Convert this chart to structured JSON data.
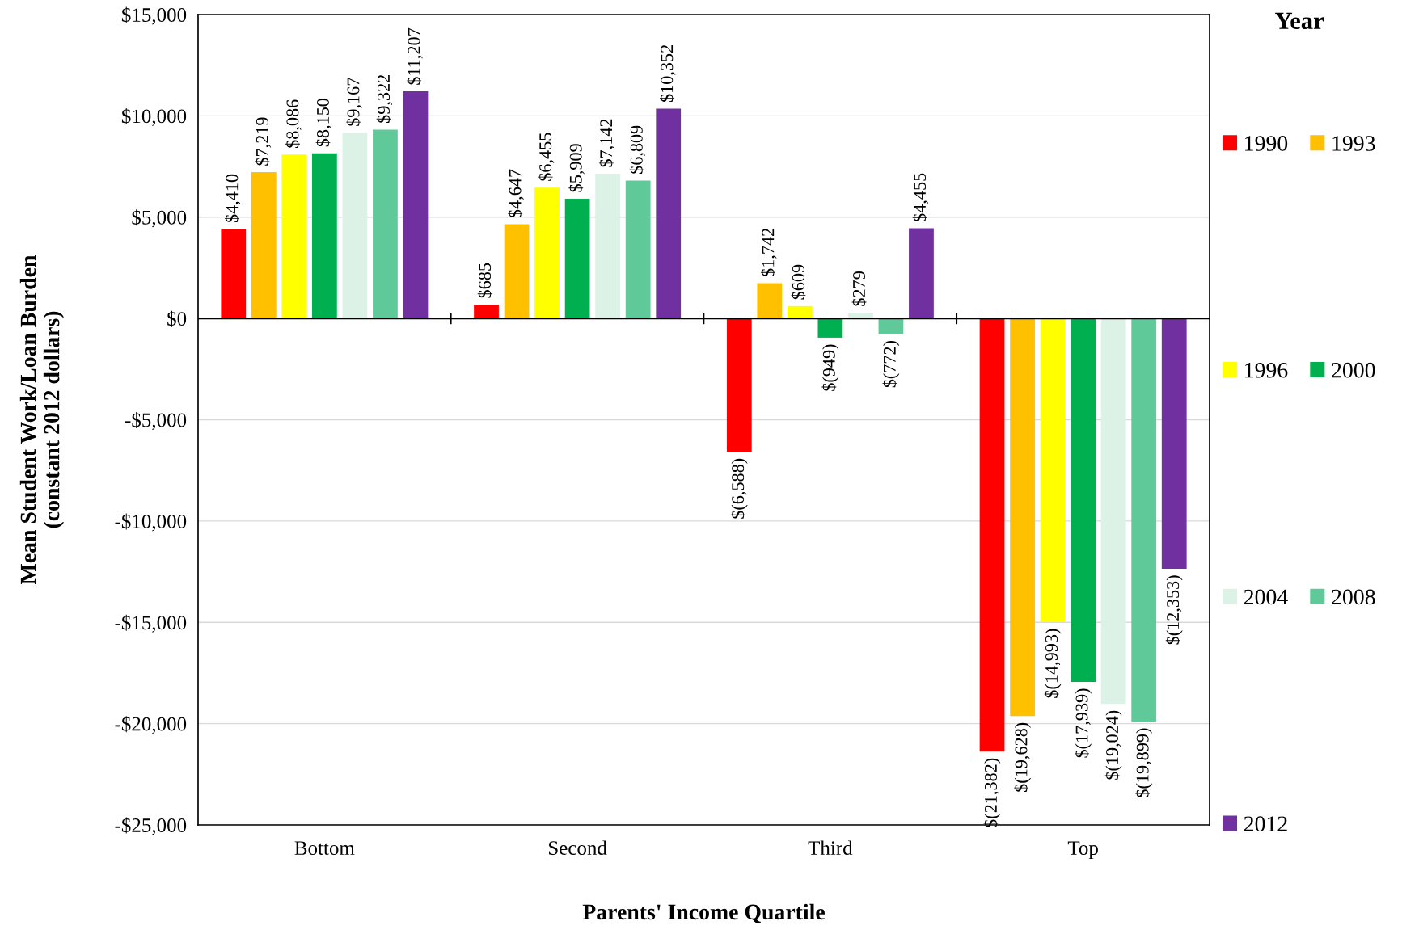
{
  "chart_data": {
    "type": "bar",
    "xlabel": "Parents' Income Quartile",
    "ylabel": "Mean Student Work/Loan Burden\n(constant 2012 dollars)",
    "legend_title": "Year",
    "legend": "right",
    "grid": "y",
    "categories": [
      "Bottom",
      "Second",
      "Third",
      "Top"
    ],
    "ylim": [
      -25000,
      15000
    ],
    "yticks": [
      {
        "value": -25000,
        "label": "-$25,000"
      },
      {
        "value": -20000,
        "label": "-$20,000"
      },
      {
        "value": -15000,
        "label": "-$15,000"
      },
      {
        "value": -10000,
        "label": "-$10,000"
      },
      {
        "value": -5000,
        "label": "-$5,000"
      },
      {
        "value": 0,
        "label": "$0"
      },
      {
        "value": 5000,
        "label": "$5,000"
      },
      {
        "value": 10000,
        "label": "$10,000"
      },
      {
        "value": 15000,
        "label": "$15,000"
      }
    ],
    "ref_lines": [
      {
        "axis": "y",
        "value": 0,
        "color": "#000000"
      }
    ],
    "series": [
      {
        "name": "1990",
        "color": "#ff0000",
        "values": [
          4410,
          685,
          -6588,
          -21382
        ],
        "value_labels": [
          "$4,410",
          "$685",
          "$(6,588)",
          "$(21,382)"
        ]
      },
      {
        "name": "1993",
        "color": "#ffc000",
        "values": [
          7219,
          4647,
          1742,
          -19628
        ],
        "value_labels": [
          "$7,219",
          "$4,647",
          "$1,742",
          "$(19,628)"
        ]
      },
      {
        "name": "1996",
        "color": "#ffff00",
        "values": [
          8086,
          6455,
          609,
          -14993
        ],
        "value_labels": [
          "$8,086",
          "$6,455",
          "$609",
          "$(14,993)"
        ]
      },
      {
        "name": "2000",
        "color": "#00b050",
        "values": [
          8150,
          5909,
          -949,
          -17939
        ],
        "value_labels": [
          "$8,150",
          "$5,909",
          "$(949)",
          "$(17,939)"
        ]
      },
      {
        "name": "2004",
        "color": "#dcf2e6",
        "values": [
          9167,
          7142,
          279,
          -19024
        ],
        "value_labels": [
          "$9,167",
          "$7,142",
          "$279",
          "$(19,024)"
        ]
      },
      {
        "name": "2008",
        "color": "#5fc99a",
        "values": [
          9322,
          6809,
          -772,
          -19899
        ],
        "value_labels": [
          "$9,322",
          "$6,809",
          "$(772)",
          "$(19,899)"
        ]
      },
      {
        "name": "2012",
        "color": "#7030a0",
        "values": [
          11207,
          10352,
          4455,
          -12353
        ],
        "value_labels": [
          "$11,207",
          "$10,352",
          "$4,455",
          "$(12,353)"
        ]
      }
    ]
  }
}
